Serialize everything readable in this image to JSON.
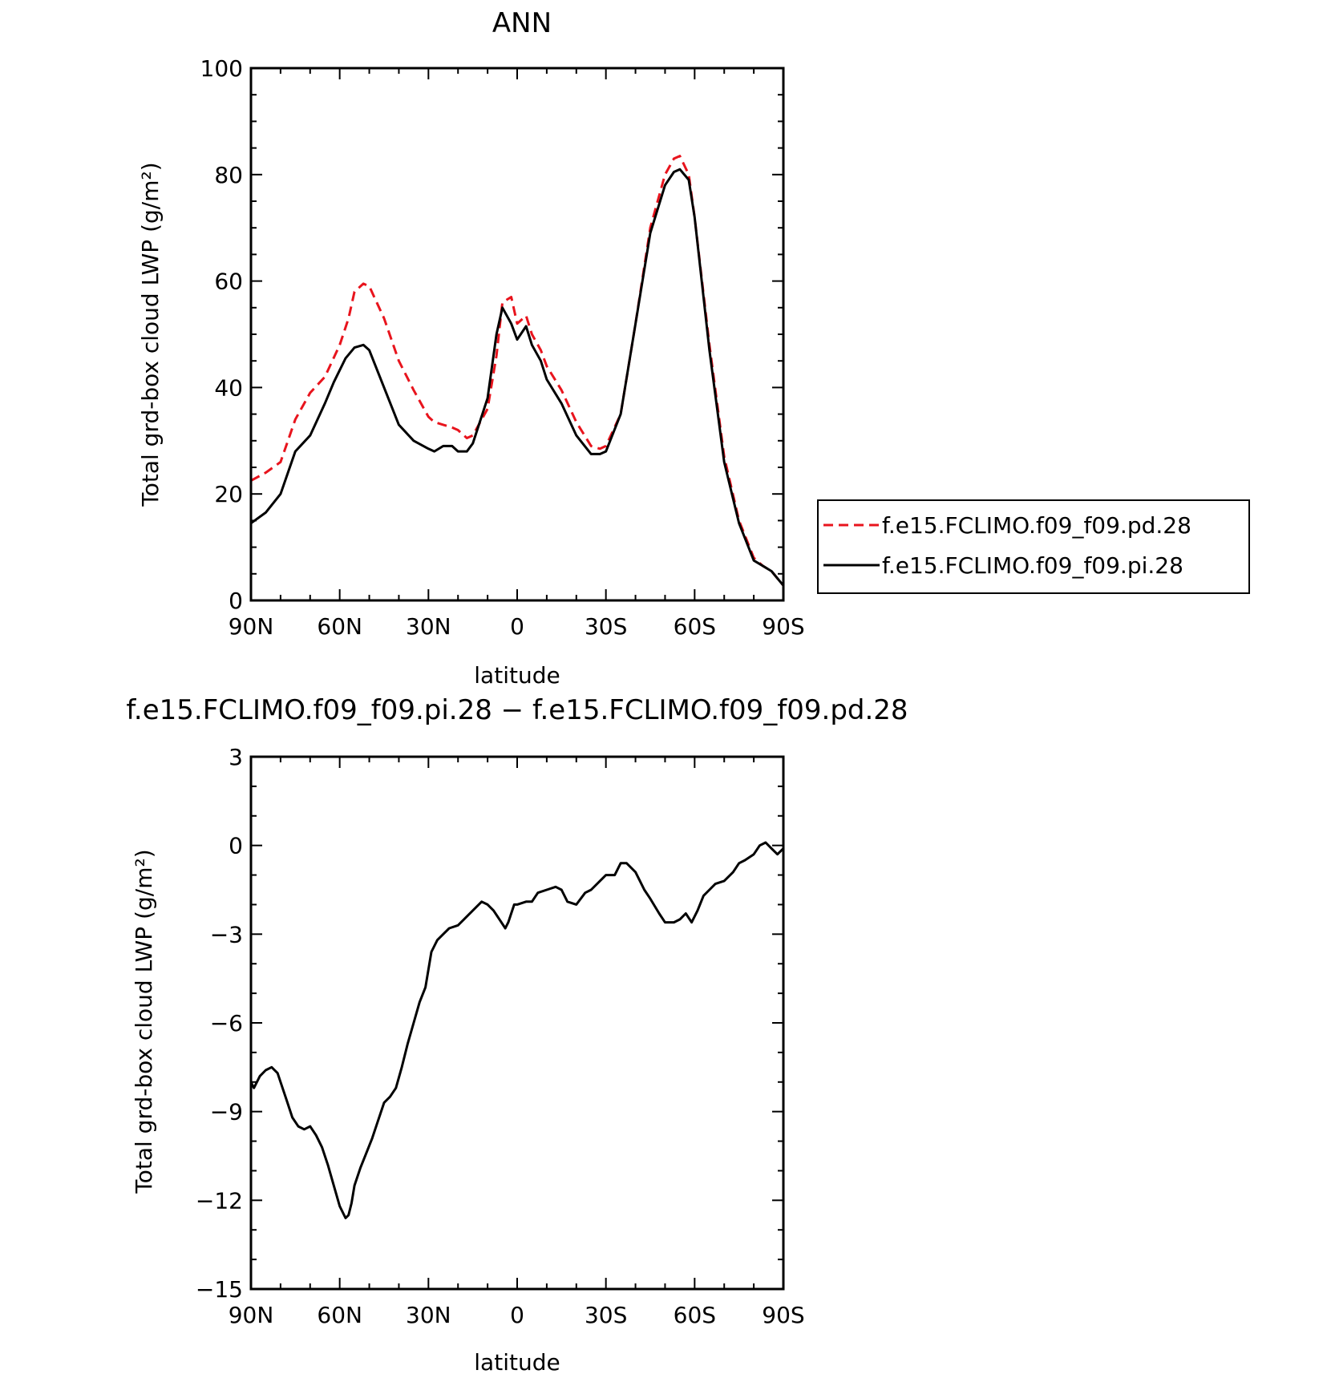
{
  "chart_data": [
    {
      "type": "line",
      "title": "ANN",
      "xlabel": "latitude",
      "ylabel": "Total grd-box cloud LWP (g/m²)",
      "x_tick_labels": [
        "90N",
        "60N",
        "30N",
        "0",
        "30S",
        "60S",
        "90S"
      ],
      "y_tick_labels": [
        "0",
        "20",
        "40",
        "60",
        "80",
        "100"
      ],
      "xlim": [
        90,
        -90
      ],
      "ylim": [
        0,
        100
      ],
      "legend": {
        "placement": "right-outside"
      },
      "series": [
        {
          "name": "f.e15.FCLIMO.f09_f09.pd.28",
          "color": "#e8141d",
          "style": "dashed",
          "x": [
            90,
            85,
            80,
            75,
            70,
            65,
            60,
            57,
            55,
            52,
            50,
            45,
            40,
            35,
            30,
            28,
            25,
            22,
            20,
            17,
            15,
            10,
            7,
            5,
            2,
            0,
            -3,
            -5,
            -8,
            -10,
            -15,
            -20,
            -25,
            -28,
            -30,
            -35,
            -40,
            -45,
            -50,
            -53,
            -55,
            -58,
            -60,
            -65,
            -70,
            -75,
            -80,
            -83,
            -86,
            -90
          ],
          "y": [
            22.5,
            24,
            26,
            34,
            39,
            42,
            48,
            53,
            58,
            59.5,
            59,
            53,
            45,
            39.5,
            34.5,
            33.5,
            33,
            32.5,
            32,
            30.5,
            31,
            36,
            46,
            56,
            57,
            52,
            53.5,
            50,
            47,
            44,
            39.5,
            33.5,
            29,
            28.5,
            29,
            35,
            52,
            70,
            80,
            83,
            83.5,
            80,
            72,
            48,
            27,
            15,
            8,
            6.5,
            5.5,
            2.8
          ]
        },
        {
          "name": "f.e15.FCLIMO.f09_f09.pi.28",
          "color": "#000000",
          "style": "solid",
          "x": [
            90,
            85,
            80,
            75,
            70,
            65,
            62,
            58,
            55,
            52,
            50,
            45,
            40,
            35,
            30,
            28,
            25,
            22,
            20,
            17,
            15,
            10,
            7,
            5,
            2,
            0,
            -3,
            -5,
            -8,
            -10,
            -15,
            -20,
            -25,
            -28,
            -30,
            -35,
            -40,
            -45,
            -50,
            -53,
            -55,
            -58,
            -60,
            -65,
            -70,
            -75,
            -80,
            -83,
            -86,
            -90
          ],
          "y": [
            14.5,
            16.5,
            20,
            28,
            31,
            37,
            41,
            45.5,
            47.5,
            48,
            47,
            40,
            33,
            30,
            28.5,
            28,
            29,
            29,
            28,
            28,
            29.5,
            38,
            50,
            55,
            52,
            49,
            51.5,
            48,
            45,
            41.5,
            37,
            31,
            27.5,
            27.5,
            28,
            35,
            52,
            69,
            78,
            80.5,
            81,
            79,
            72,
            47,
            26,
            14.5,
            7.5,
            6.5,
            5.5,
            2.8
          ]
        }
      ]
    },
    {
      "type": "line",
      "title": "f.e15.FCLIMO.f09_f09.pi.28 − f.e15.FCLIMO.f09_f09.pd.28",
      "xlabel": "latitude",
      "ylabel": "Total grd-box cloud LWP (g/m²)",
      "x_tick_labels": [
        "90N",
        "60N",
        "30N",
        "0",
        "30S",
        "60S",
        "90S"
      ],
      "y_tick_labels": [
        "3",
        "0",
        "−3",
        "−6",
        "−9",
        "−12",
        "−15"
      ],
      "xlim": [
        90,
        -90
      ],
      "ylim": [
        -15,
        3
      ],
      "series": [
        {
          "color": "#000000",
          "style": "solid",
          "x": [
            90,
            89,
            87,
            85,
            83,
            81,
            80,
            78,
            76,
            74,
            72,
            70,
            68,
            66,
            64,
            62,
            60,
            58,
            57,
            56,
            55,
            53,
            51,
            49,
            47,
            45,
            43,
            41,
            39,
            37,
            35,
            33,
            31,
            29,
            27,
            25,
            23,
            20,
            18,
            15,
            12,
            10,
            8,
            6,
            4,
            3,
            1,
            0,
            -3,
            -5,
            -7,
            -10,
            -13,
            -15,
            -17,
            -20,
            -23,
            -25,
            -28,
            -30,
            -33,
            -35,
            -37,
            -40,
            -43,
            -45,
            -48,
            -50,
            -53,
            -55,
            -57,
            -59,
            -61,
            -63,
            -65,
            -67,
            -70,
            -73,
            -75,
            -77,
            -80,
            -82,
            -84,
            -86,
            -88,
            -90
          ],
          "y": [
            -8.0,
            -8.2,
            -7.8,
            -7.6,
            -7.5,
            -7.7,
            -8.0,
            -8.6,
            -9.2,
            -9.5,
            -9.6,
            -9.5,
            -9.8,
            -10.2,
            -10.8,
            -11.5,
            -12.2,
            -12.6,
            -12.5,
            -12.1,
            -11.5,
            -10.9,
            -10.4,
            -9.9,
            -9.3,
            -8.7,
            -8.5,
            -8.2,
            -7.5,
            -6.7,
            -6.0,
            -5.3,
            -4.8,
            -3.6,
            -3.2,
            -3.0,
            -2.8,
            -2.7,
            -2.5,
            -2.2,
            -1.9,
            -2.0,
            -2.2,
            -2.5,
            -2.8,
            -2.6,
            -2.0,
            -2.0,
            -1.9,
            -1.9,
            -1.6,
            -1.5,
            -1.4,
            -1.5,
            -1.9,
            -2.0,
            -1.6,
            -1.5,
            -1.2,
            -1.0,
            -1.0,
            -0.6,
            -0.6,
            -0.9,
            -1.5,
            -1.8,
            -2.3,
            -2.6,
            -2.6,
            -2.5,
            -2.3,
            -2.6,
            -2.2,
            -1.7,
            -1.5,
            -1.3,
            -1.2,
            -0.9,
            -0.6,
            -0.5,
            -0.3,
            0.0,
            0.1,
            -0.1,
            -0.3,
            -0.1
          ]
        }
      ]
    }
  ]
}
